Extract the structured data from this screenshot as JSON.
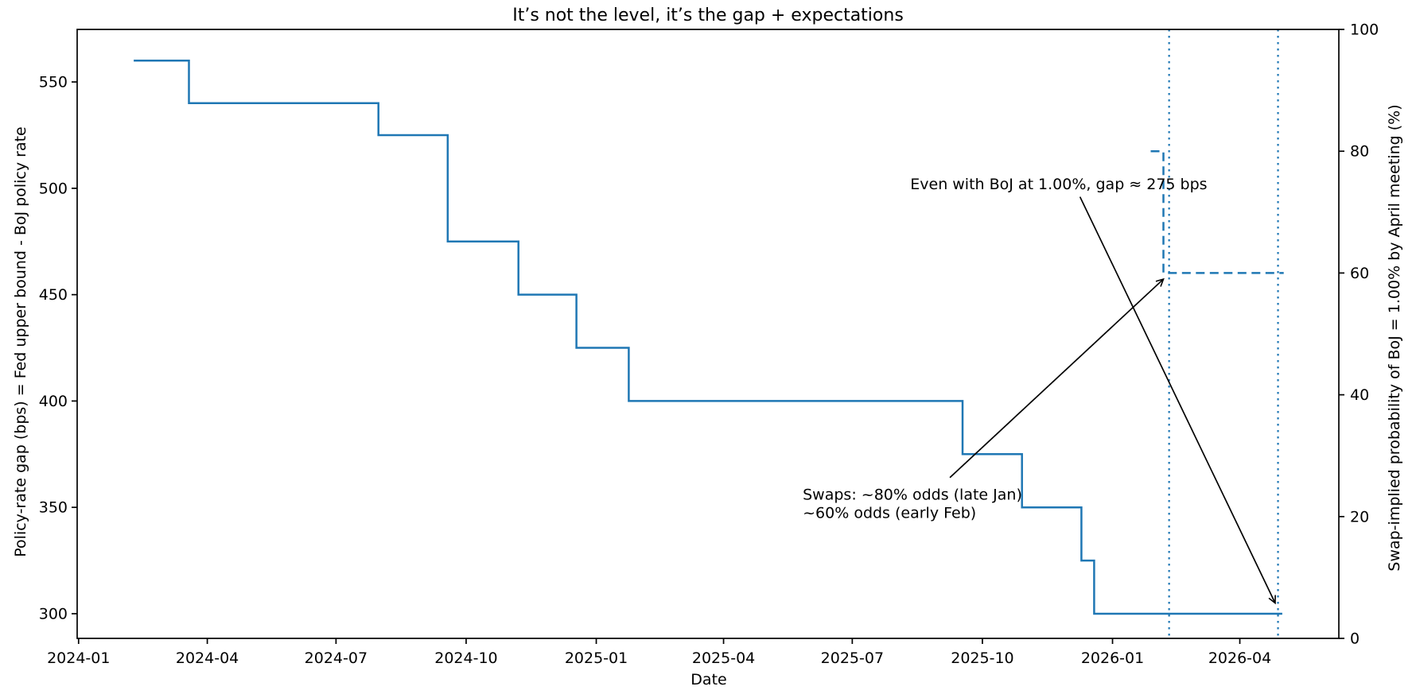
{
  "title": "It’s not the level, it’s the gap + expectations",
  "chart_data": {
    "type": "line",
    "title": "It’s not the level, it’s the gap + expectations",
    "xlabel": "Date",
    "ylabel_left": "Policy-rate gap (bps) = Fed upper bound - BoJ policy rate",
    "ylabel_right": "Swap-implied probability of BoJ = 1.00% by April meeting (%)",
    "line_color": "#1f77b4",
    "grid": false,
    "legend": "none",
    "xlim": [
      "2023-12-31",
      "2026-06-10"
    ],
    "x_ticks": [
      {
        "label": "2024-01",
        "date": "2024-01-01"
      },
      {
        "label": "2024-04",
        "date": "2024-04-01"
      },
      {
        "label": "2024-07",
        "date": "2024-07-01"
      },
      {
        "label": "2024-10",
        "date": "2024-10-01"
      },
      {
        "label": "2025-01",
        "date": "2025-01-01"
      },
      {
        "label": "2025-04",
        "date": "2025-04-01"
      },
      {
        "label": "2025-07",
        "date": "2025-07-01"
      },
      {
        "label": "2025-10",
        "date": "2025-10-01"
      },
      {
        "label": "2026-01",
        "date": "2026-01-01"
      },
      {
        "label": "2026-04",
        "date": "2026-04-01"
      }
    ],
    "y_left": {
      "ticks": [
        300,
        350,
        400,
        450,
        500,
        550
      ],
      "lim": [
        288.4,
        574.7
      ]
    },
    "y_right": {
      "ticks": [
        0,
        20,
        40,
        60,
        80,
        100
      ],
      "lim": [
        0,
        100
      ]
    },
    "series": [
      {
        "name": "policy-rate-gap-bps",
        "axis": "left",
        "style": "solid",
        "step": true,
        "color": "#1f77b4",
        "points": [
          [
            "2024-02-09",
            560
          ],
          [
            "2024-03-19",
            540
          ],
          [
            "2024-07-31",
            525
          ],
          [
            "2024-09-18",
            475
          ],
          [
            "2024-11-07",
            450
          ],
          [
            "2024-12-18",
            425
          ],
          [
            "2025-01-24",
            400
          ],
          [
            "2025-09-17",
            375
          ],
          [
            "2025-10-29",
            350
          ],
          [
            "2025-12-10",
            325
          ],
          [
            "2025-12-19",
            300
          ],
          [
            "2026-05-01",
            300
          ]
        ]
      },
      {
        "name": "swap-implied-probability-pct",
        "axis": "right",
        "style": "dashed",
        "step": true,
        "color": "#1f77b4",
        "points": [
          [
            "2026-01-28",
            80
          ],
          [
            "2026-02-06",
            60
          ],
          [
            "2026-05-02",
            60
          ]
        ]
      }
    ],
    "vlines": [
      {
        "date": "2026-02-10",
        "style": "dotted",
        "color": "#1f77b4"
      },
      {
        "date": "2026-04-28",
        "style": "dotted",
        "color": "#1f77b4"
      }
    ],
    "annotations": [
      {
        "id": "gap-annotation",
        "lines": [
          "Even with BoJ at 1.00%, gap ≈ 275 bps"
        ],
        "text_axis": "left",
        "text_at": [
          "2025-08-11",
          502
        ],
        "arrow_from_axis": "left",
        "arrow_from": [
          "2025-12-09",
          496
        ],
        "arrow_to_axis": "left",
        "arrow_to": [
          "2026-04-26",
          305
        ]
      },
      {
        "id": "swaps-annotation",
        "lines": [
          "Swaps: ~80% odds (late Jan)",
          "~60% odds (early Feb)"
        ],
        "text_axis": "left",
        "text_at": [
          "2025-05-27",
          356
        ],
        "arrow_from_axis": "left",
        "arrow_from": [
          "2025-09-08",
          364
        ],
        "arrow_to_axis": "right",
        "arrow_to": [
          "2026-02-06",
          59
        ]
      }
    ]
  }
}
